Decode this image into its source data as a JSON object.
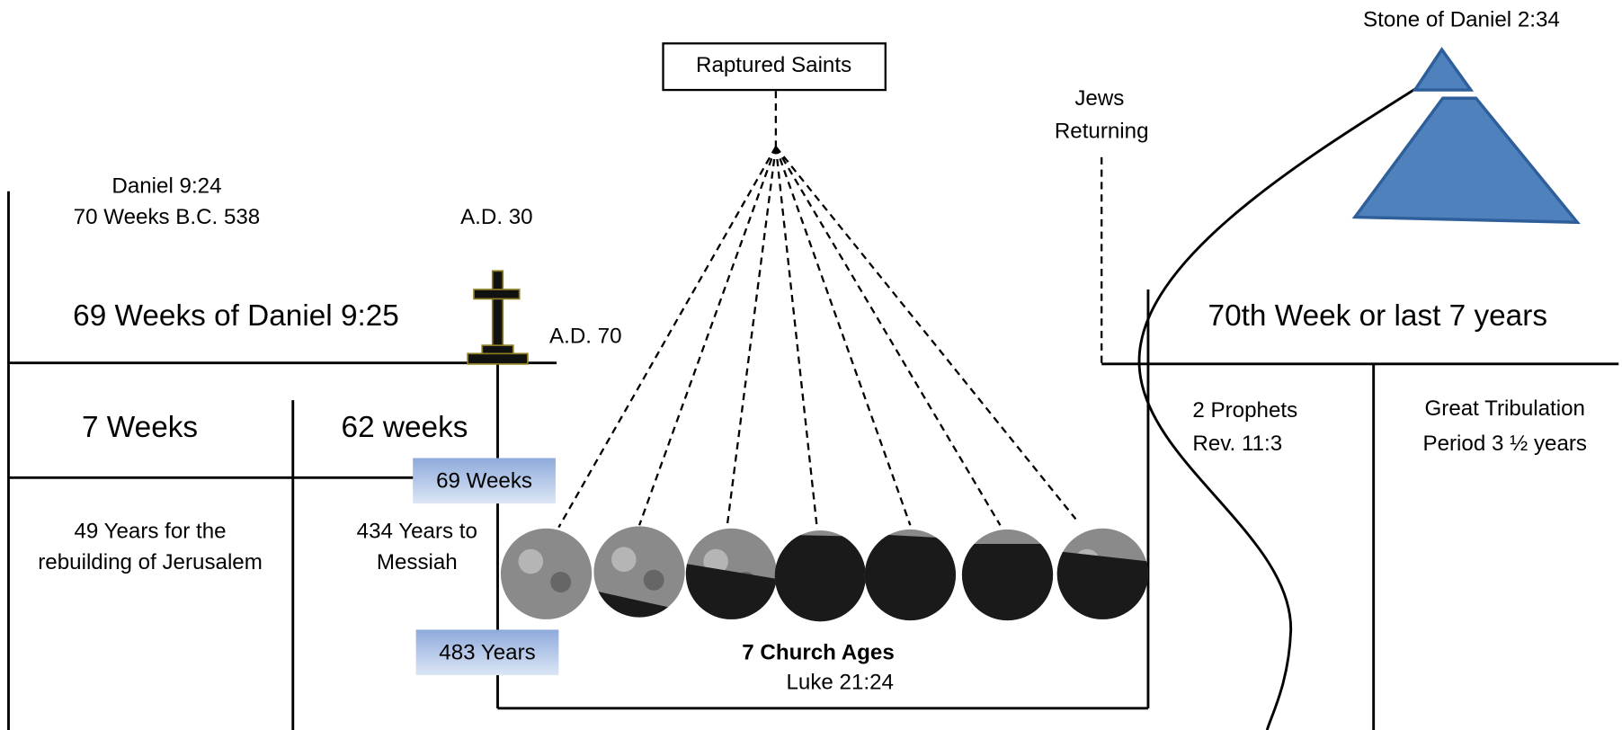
{
  "stone": "Stone of Daniel 2:34",
  "raptured": "Raptured Saints",
  "jews": [
    "Jews",
    "Returning"
  ],
  "daniel924": [
    "Daniel 9:24",
    "70 Weeks B.C. 538"
  ],
  "ad30": "A.D. 30",
  "ad70": "A.D. 70",
  "weeks69": "69 Weeks of Daniel 9:25",
  "week70": "70th Week or last 7 years",
  "weeks7": "7 Weeks",
  "weeks62": "62 weeks",
  "box69": "69 Weeks",
  "prophets": [
    "2 Prophets",
    "Rev. 11:3"
  ],
  "tribulation": [
    "Great Tribulation",
    "Period 3 ½ years"
  ],
  "years49": [
    "49 Years for the",
    "rebuilding of Jerusalem"
  ],
  "years434": [
    "434 Years to",
    "Messiah"
  ],
  "box483": "483 Years",
  "church": "7 Church Ages",
  "luke": "Luke 21:24"
}
